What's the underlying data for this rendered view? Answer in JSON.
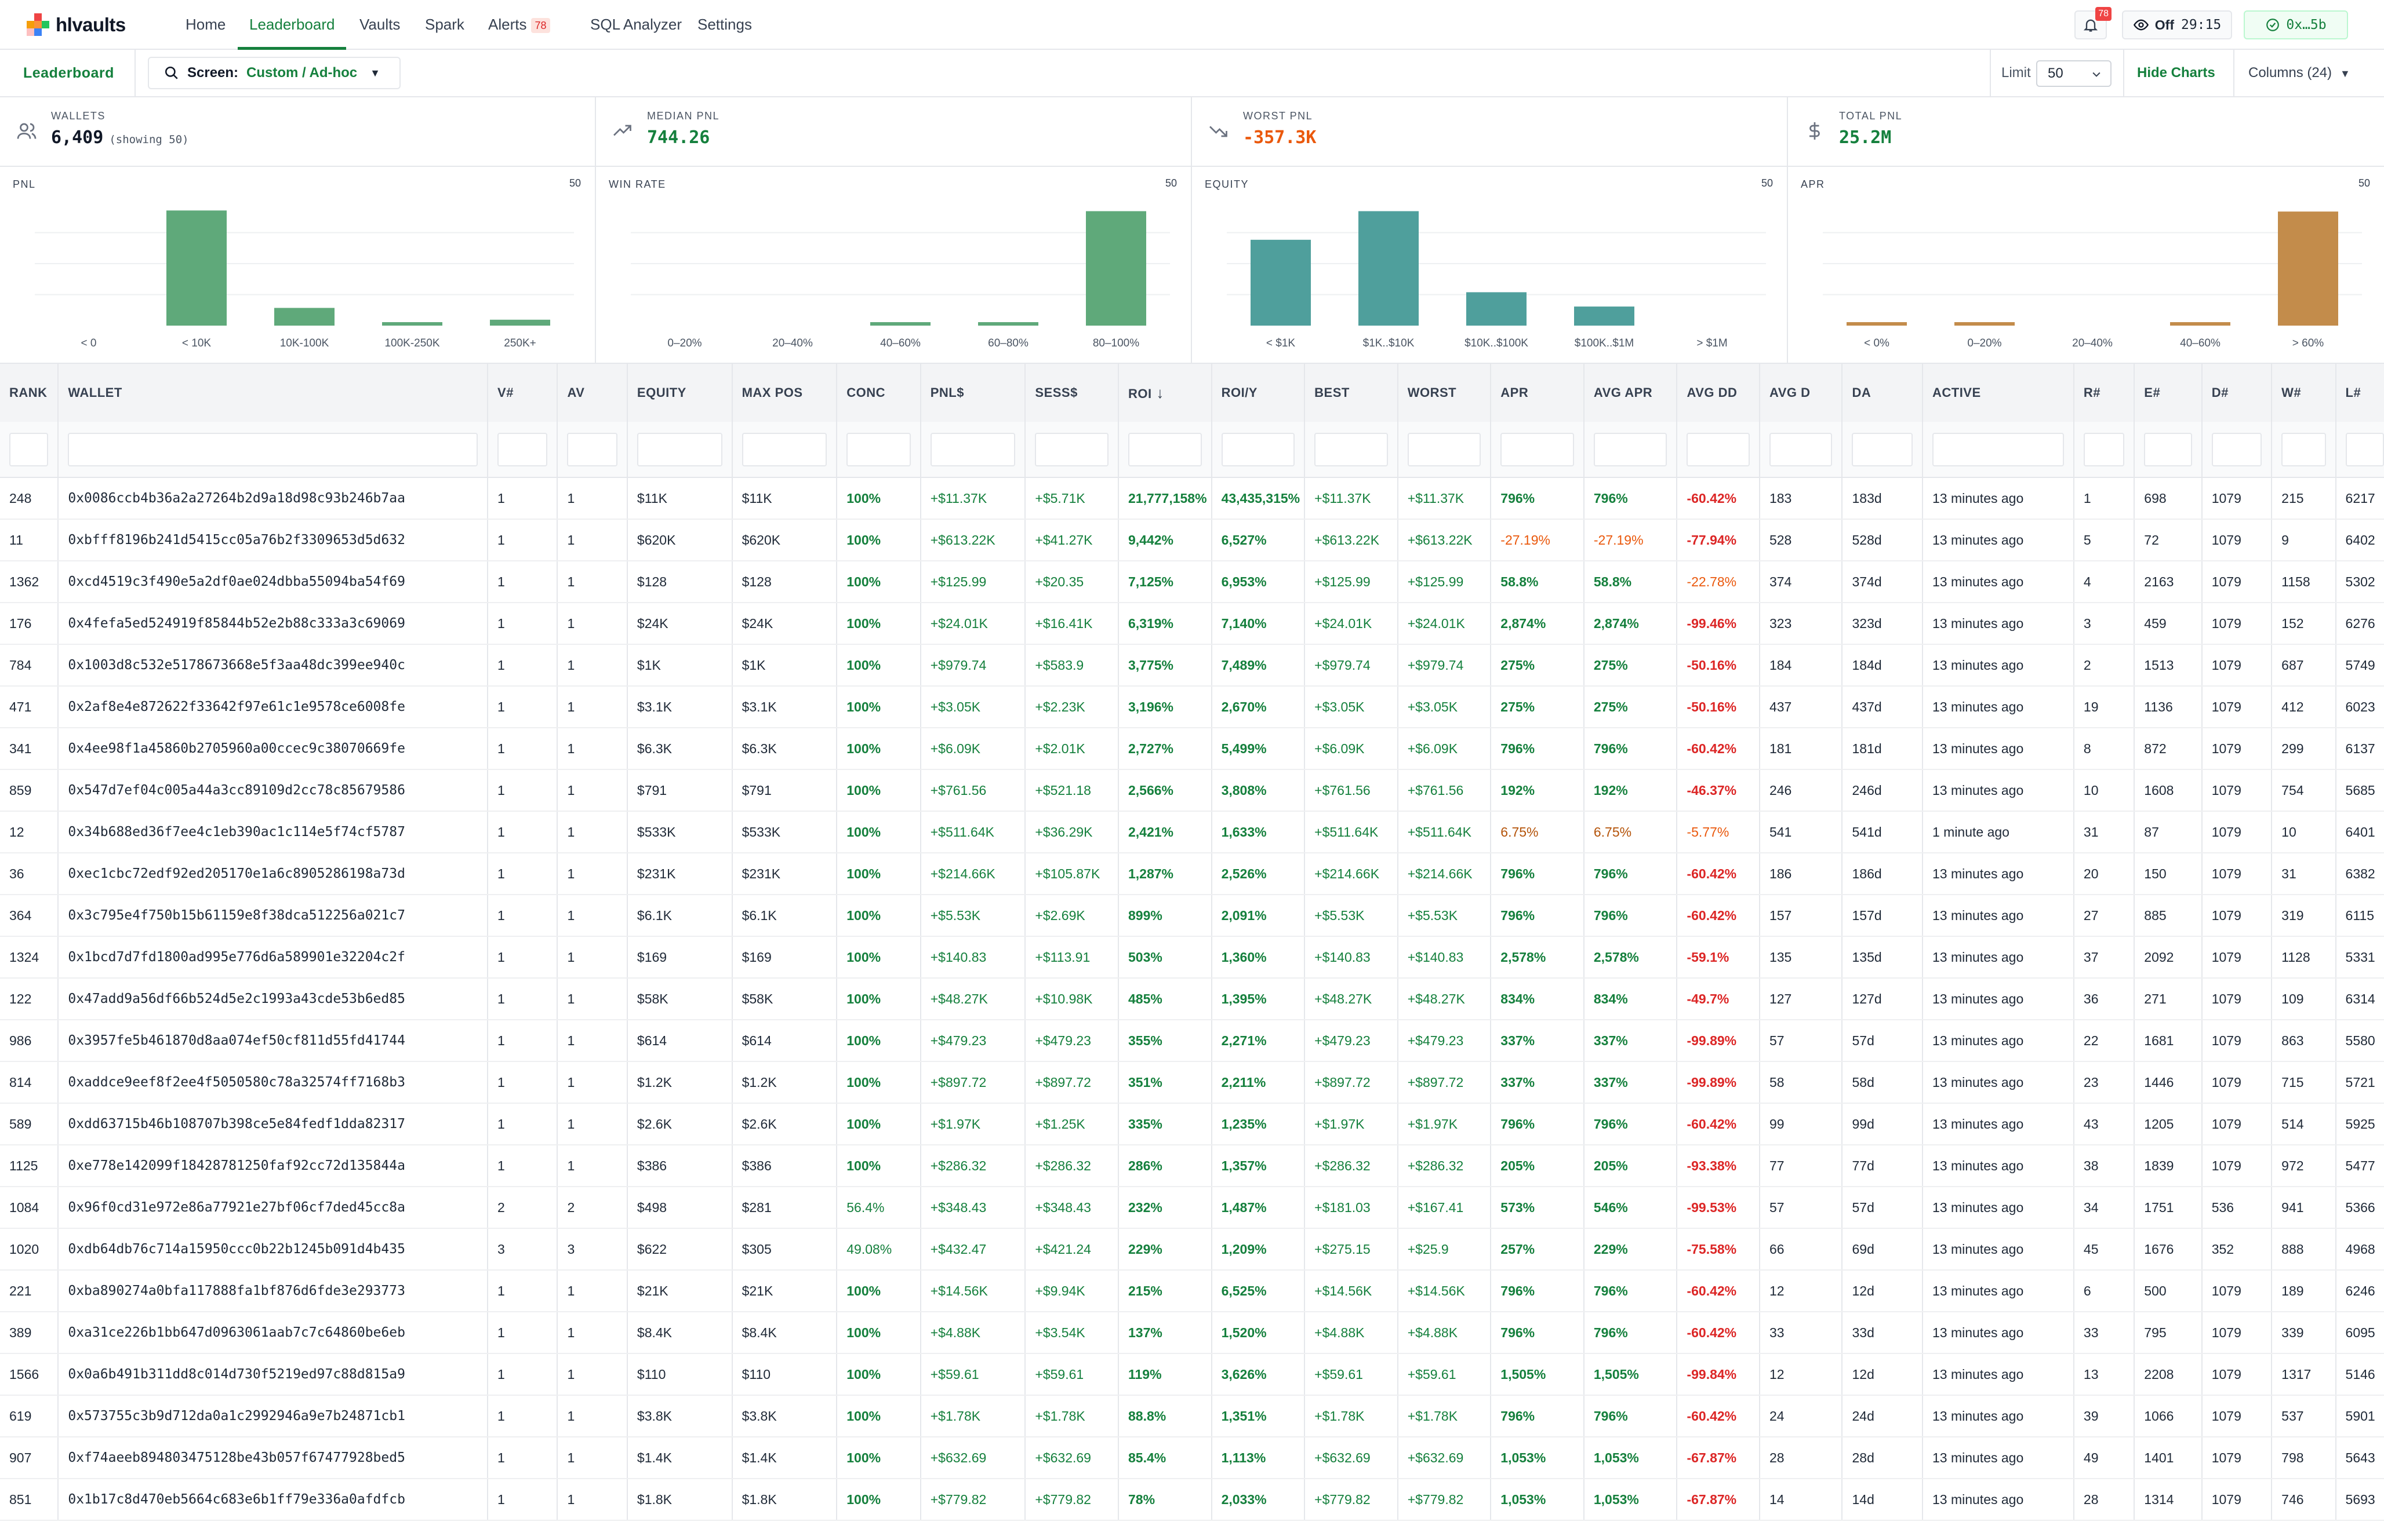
{
  "app": {
    "name": "hlvaults"
  },
  "nav": {
    "items": [
      {
        "label": "Home"
      },
      {
        "label": "Leaderboard"
      },
      {
        "label": "Vaults"
      },
      {
        "label": "Spark"
      },
      {
        "label": "Alerts",
        "badge": "78"
      },
      {
        "label": "SQL Analyzer"
      },
      {
        "label": "Settings"
      }
    ],
    "bell_badge": "78",
    "live_toggle": {
      "state": "Off",
      "timer": "29:15"
    },
    "wallet": "0x…5b"
  },
  "subbar": {
    "title": "Leaderboard",
    "screen_label": "Screen:",
    "screen_value": "Custom / Ad-hoc",
    "limit_label": "Limit",
    "limit_value": "50",
    "hide_charts": "Hide Charts",
    "columns": "Columns (24)"
  },
  "stats": [
    {
      "label": "WALLETS",
      "value": "6,409",
      "sub": "(showing 50)",
      "icon": "users-icon",
      "color": "#111827"
    },
    {
      "label": "MEDIAN PNL",
      "value": "744.26",
      "icon": "trending-up-icon",
      "color": "#15803d"
    },
    {
      "label": "WORST PNL",
      "value": "-357.3K",
      "icon": "trending-down-icon",
      "color": "#ea580c"
    },
    {
      "label": "TOTAL PNL",
      "value": "25.2M",
      "icon": "dollar-icon",
      "color": "#15803d"
    }
  ],
  "chart_data": [
    {
      "type": "bar",
      "title": "PNL",
      "count": "50",
      "color": "#5fa97a",
      "categories": [
        "< 0",
        "< 10K",
        "10K-100K",
        "100K-250K",
        "250K+"
      ],
      "values": [
        0,
        39,
        6,
        1,
        2
      ],
      "ylim": [
        0,
        42
      ]
    },
    {
      "type": "bar",
      "title": "WIN RATE",
      "count": "50",
      "color": "#5fa97a",
      "categories": [
        "0–20%",
        "20–40%",
        "40–60%",
        "60–80%",
        "80–100%"
      ],
      "values": [
        0,
        0,
        1,
        1,
        48
      ],
      "ylim": [
        0,
        52
      ]
    },
    {
      "type": "bar",
      "title": "EQUITY",
      "count": "50",
      "color": "#4f9f9c",
      "categories": [
        "< $1K",
        "$1K..$10K",
        "$10K..$100K",
        "$100K..$1M",
        "> $1M"
      ],
      "values": [
        18,
        24,
        7,
        4,
        0
      ],
      "ylim": [
        0,
        26
      ]
    },
    {
      "type": "bar",
      "title": "APR",
      "count": "50",
      "color": "#c38c4b",
      "categories": [
        "< 0%",
        "0–20%",
        "20–40%",
        "40–60%",
        "> 60%"
      ],
      "values": [
        1,
        1,
        0,
        1,
        46
      ],
      "ylim": [
        0,
        50
      ]
    }
  ],
  "table": {
    "columns": [
      "RANK",
      "WALLET",
      "V#",
      "AV",
      "EQUITY",
      "MAX POS",
      "CONC",
      "PNL$",
      "SESS$",
      "ROI",
      "ROI/Y",
      "BEST",
      "WORST",
      "APR",
      "AVG APR",
      "AVG DD",
      "AVG D",
      "DA",
      "ACTIVE",
      "R#",
      "E#",
      "D#",
      "W#",
      "L#"
    ],
    "sorted_column": "ROI",
    "rows": [
      [
        "248",
        "0x0086ccb4b36a2a27264b2d9a18d98c93b246b7aa",
        "1",
        "1",
        "$11K",
        "$11K",
        "100%",
        "+$11.37K",
        "+$5.71K",
        "21,777,158%",
        "43,435,315%",
        "+$11.37K",
        "+$11.37K",
        "796%",
        "796%",
        "-60.42%",
        "183",
        "183d",
        "13 minutes ago",
        "1",
        "698",
        "1079",
        "215",
        "6217"
      ],
      [
        "11",
        "0xbfff8196b241d5415cc05a76b2f3309653d5d632",
        "1",
        "1",
        "$620K",
        "$620K",
        "100%",
        "+$613.22K",
        "+$41.27K",
        "9,442%",
        "6,527%",
        "+$613.22K",
        "+$613.22K",
        "-27.19%",
        "-27.19%",
        "-77.94%",
        "528",
        "528d",
        "13 minutes ago",
        "5",
        "72",
        "1079",
        "9",
        "6402"
      ],
      [
        "1362",
        "0xcd4519c3f490e5a2df0ae024dbba55094ba54f69",
        "1",
        "1",
        "$128",
        "$128",
        "100%",
        "+$125.99",
        "+$20.35",
        "7,125%",
        "6,953%",
        "+$125.99",
        "+$125.99",
        "58.8%",
        "58.8%",
        "-22.78%",
        "374",
        "374d",
        "13 minutes ago",
        "4",
        "2163",
        "1079",
        "1158",
        "5302"
      ],
      [
        "176",
        "0x4fefa5ed524919f85844b52e2b88c333a3c69069",
        "1",
        "1",
        "$24K",
        "$24K",
        "100%",
        "+$24.01K",
        "+$16.41K",
        "6,319%",
        "7,140%",
        "+$24.01K",
        "+$24.01K",
        "2,874%",
        "2,874%",
        "-99.46%",
        "323",
        "323d",
        "13 minutes ago",
        "3",
        "459",
        "1079",
        "152",
        "6276"
      ],
      [
        "784",
        "0x1003d8c532e5178673668e5f3aa48dc399ee940c",
        "1",
        "1",
        "$1K",
        "$1K",
        "100%",
        "+$979.74",
        "+$583.9",
        "3,775%",
        "7,489%",
        "+$979.74",
        "+$979.74",
        "275%",
        "275%",
        "-50.16%",
        "184",
        "184d",
        "13 minutes ago",
        "2",
        "1513",
        "1079",
        "687",
        "5749"
      ],
      [
        "471",
        "0x2af8e4e872622f33642f97e61c1e9578ce6008fe",
        "1",
        "1",
        "$3.1K",
        "$3.1K",
        "100%",
        "+$3.05K",
        "+$2.23K",
        "3,196%",
        "2,670%",
        "+$3.05K",
        "+$3.05K",
        "275%",
        "275%",
        "-50.16%",
        "437",
        "437d",
        "13 minutes ago",
        "19",
        "1136",
        "1079",
        "412",
        "6023"
      ],
      [
        "341",
        "0x4ee98f1a45860b2705960a00ccec9c38070669fe",
        "1",
        "1",
        "$6.3K",
        "$6.3K",
        "100%",
        "+$6.09K",
        "+$2.01K",
        "2,727%",
        "5,499%",
        "+$6.09K",
        "+$6.09K",
        "796%",
        "796%",
        "-60.42%",
        "181",
        "181d",
        "13 minutes ago",
        "8",
        "872",
        "1079",
        "299",
        "6137"
      ],
      [
        "859",
        "0x547d7ef04c005a44a3cc89109d2cc78c85679586",
        "1",
        "1",
        "$791",
        "$791",
        "100%",
        "+$761.56",
        "+$521.18",
        "2,566%",
        "3,808%",
        "+$761.56",
        "+$761.56",
        "192%",
        "192%",
        "-46.37%",
        "246",
        "246d",
        "13 minutes ago",
        "10",
        "1608",
        "1079",
        "754",
        "5685"
      ],
      [
        "12",
        "0x34b688ed36f7ee4c1eb390ac1c114e5f74cf5787",
        "1",
        "1",
        "$533K",
        "$533K",
        "100%",
        "+$511.64K",
        "+$36.29K",
        "2,421%",
        "1,633%",
        "+$511.64K",
        "+$511.64K",
        "6.75%",
        "6.75%",
        "-5.77%",
        "541",
        "541d",
        "1 minute ago",
        "31",
        "87",
        "1079",
        "10",
        "6401"
      ],
      [
        "36",
        "0xec1cbc72edf92ed205170e1a6c8905286198a73d",
        "1",
        "1",
        "$231K",
        "$231K",
        "100%",
        "+$214.66K",
        "+$105.87K",
        "1,287%",
        "2,526%",
        "+$214.66K",
        "+$214.66K",
        "796%",
        "796%",
        "-60.42%",
        "186",
        "186d",
        "13 minutes ago",
        "20",
        "150",
        "1079",
        "31",
        "6382"
      ],
      [
        "364",
        "0x3c795e4f750b15b61159e8f38dca512256a021c7",
        "1",
        "1",
        "$6.1K",
        "$6.1K",
        "100%",
        "+$5.53K",
        "+$2.69K",
        "899%",
        "2,091%",
        "+$5.53K",
        "+$5.53K",
        "796%",
        "796%",
        "-60.42%",
        "157",
        "157d",
        "13 minutes ago",
        "27",
        "885",
        "1079",
        "319",
        "6115"
      ],
      [
        "1324",
        "0x1bcd7d7fd1800ad995e776d6a589901e32204c2f",
        "1",
        "1",
        "$169",
        "$169",
        "100%",
        "+$140.83",
        "+$113.91",
        "503%",
        "1,360%",
        "+$140.83",
        "+$140.83",
        "2,578%",
        "2,578%",
        "-59.1%",
        "135",
        "135d",
        "13 minutes ago",
        "37",
        "2092",
        "1079",
        "1128",
        "5331"
      ],
      [
        "122",
        "0x47add9a56df66b524d5e2c1993a43cde53b6ed85",
        "1",
        "1",
        "$58K",
        "$58K",
        "100%",
        "+$48.27K",
        "+$10.98K",
        "485%",
        "1,395%",
        "+$48.27K",
        "+$48.27K",
        "834%",
        "834%",
        "-49.7%",
        "127",
        "127d",
        "13 minutes ago",
        "36",
        "271",
        "1079",
        "109",
        "6314"
      ],
      [
        "986",
        "0x3957fe5b461870d8aa074ef50cf811d55fd41744",
        "1",
        "1",
        "$614",
        "$614",
        "100%",
        "+$479.23",
        "+$479.23",
        "355%",
        "2,271%",
        "+$479.23",
        "+$479.23",
        "337%",
        "337%",
        "-99.89%",
        "57",
        "57d",
        "13 minutes ago",
        "22",
        "1681",
        "1079",
        "863",
        "5580"
      ],
      [
        "814",
        "0xaddce9eef8f2ee4f5050580c78a32574ff7168b3",
        "1",
        "1",
        "$1.2K",
        "$1.2K",
        "100%",
        "+$897.72",
        "+$897.72",
        "351%",
        "2,211%",
        "+$897.72",
        "+$897.72",
        "337%",
        "337%",
        "-99.89%",
        "58",
        "58d",
        "13 minutes ago",
        "23",
        "1446",
        "1079",
        "715",
        "5721"
      ],
      [
        "589",
        "0xdd63715b46b108707b398ce5e84fedf1dda82317",
        "1",
        "1",
        "$2.6K",
        "$2.6K",
        "100%",
        "+$1.97K",
        "+$1.25K",
        "335%",
        "1,235%",
        "+$1.97K",
        "+$1.97K",
        "796%",
        "796%",
        "-60.42%",
        "99",
        "99d",
        "13 minutes ago",
        "43",
        "1205",
        "1079",
        "514",
        "5925"
      ],
      [
        "1125",
        "0xe778e142099f18428781250faf92cc72d135844a",
        "1",
        "1",
        "$386",
        "$386",
        "100%",
        "+$286.32",
        "+$286.32",
        "286%",
        "1,357%",
        "+$286.32",
        "+$286.32",
        "205%",
        "205%",
        "-93.38%",
        "77",
        "77d",
        "13 minutes ago",
        "38",
        "1839",
        "1079",
        "972",
        "5477"
      ],
      [
        "1084",
        "0x96f0cd31e972e86a77921e27bf06cf7ded45cc8a",
        "2",
        "2",
        "$498",
        "$281",
        "56.4%",
        "+$348.43",
        "+$348.43",
        "232%",
        "1,487%",
        "+$181.03",
        "+$167.41",
        "573%",
        "546%",
        "-99.53%",
        "57",
        "57d",
        "13 minutes ago",
        "34",
        "1751",
        "536",
        "941",
        "5366"
      ],
      [
        "1020",
        "0xdb64db76c714a15950ccc0b22b1245b091d4b435",
        "3",
        "3",
        "$622",
        "$305",
        "49.08%",
        "+$432.47",
        "+$421.24",
        "229%",
        "1,209%",
        "+$275.15",
        "+$25.9",
        "257%",
        "229%",
        "-75.58%",
        "66",
        "69d",
        "13 minutes ago",
        "45",
        "1676",
        "352",
        "888",
        "4968"
      ],
      [
        "221",
        "0xba890274a0bfa117888fa1bf876d6fde3e293773",
        "1",
        "1",
        "$21K",
        "$21K",
        "100%",
        "+$14.56K",
        "+$9.94K",
        "215%",
        "6,525%",
        "+$14.56K",
        "+$14.56K",
        "796%",
        "796%",
        "-60.42%",
        "12",
        "12d",
        "13 minutes ago",
        "6",
        "500",
        "1079",
        "189",
        "6246"
      ],
      [
        "389",
        "0xa31ce226b1bb647d0963061aab7c7c64860be6eb",
        "1",
        "1",
        "$8.4K",
        "$8.4K",
        "100%",
        "+$4.88K",
        "+$3.54K",
        "137%",
        "1,520%",
        "+$4.88K",
        "+$4.88K",
        "796%",
        "796%",
        "-60.42%",
        "33",
        "33d",
        "13 minutes ago",
        "33",
        "795",
        "1079",
        "339",
        "6095"
      ],
      [
        "1566",
        "0x0a6b491b311dd8c014d730f5219ed97c88d815a9",
        "1",
        "1",
        "$110",
        "$110",
        "100%",
        "+$59.61",
        "+$59.61",
        "119%",
        "3,626%",
        "+$59.61",
        "+$59.61",
        "1,505%",
        "1,505%",
        "-99.84%",
        "12",
        "12d",
        "13 minutes ago",
        "13",
        "2208",
        "1079",
        "1317",
        "5146"
      ],
      [
        "619",
        "0x573755c3b9d712da0a1c2992946a9e7b24871cb1",
        "1",
        "1",
        "$3.8K",
        "$3.8K",
        "100%",
        "+$1.78K",
        "+$1.78K",
        "88.8%",
        "1,351%",
        "+$1.78K",
        "+$1.78K",
        "796%",
        "796%",
        "-60.42%",
        "24",
        "24d",
        "13 minutes ago",
        "39",
        "1066",
        "1079",
        "537",
        "5901"
      ],
      [
        "907",
        "0xf74aeeb894803475128be43b057f67477928bed5",
        "1",
        "1",
        "$1.4K",
        "$1.4K",
        "100%",
        "+$632.69",
        "+$632.69",
        "85.4%",
        "1,113%",
        "+$632.69",
        "+$632.69",
        "1,053%",
        "1,053%",
        "-67.87%",
        "28",
        "28d",
        "13 minutes ago",
        "49",
        "1401",
        "1079",
        "798",
        "5643"
      ],
      [
        "851",
        "0x1b17c8d470eb5664c683e6b1ff79e336a0afdfcb",
        "1",
        "1",
        "$1.8K",
        "$1.8K",
        "100%",
        "+$779.82",
        "+$779.82",
        "78%",
        "2,033%",
        "+$779.82",
        "+$779.82",
        "1,053%",
        "1,053%",
        "-67.87%",
        "14",
        "14d",
        "13 minutes ago",
        "28",
        "1314",
        "1079",
        "746",
        "5693"
      ]
    ]
  }
}
